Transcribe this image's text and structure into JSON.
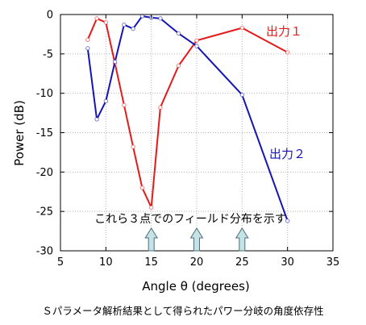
{
  "chart_data": {
    "type": "line",
    "xlabel": "Angle θ (degrees)",
    "ylabel": "Power (dB)",
    "xlim": [
      5,
      35
    ],
    "ylim": [
      -30,
      0
    ],
    "xticks": [
      5,
      10,
      15,
      20,
      25,
      30,
      35
    ],
    "yticks": [
      0,
      -5,
      -10,
      -15,
      -20,
      -25,
      -30
    ],
    "grid": true,
    "series": [
      {
        "name": "出力１",
        "color": "#e41a1a",
        "x": [
          8,
          9,
          10,
          11,
          12,
          13,
          14,
          15,
          16,
          18,
          20,
          25,
          30
        ],
        "y": [
          -3.2,
          -0.5,
          -1.0,
          -6.2,
          -11.5,
          -16.8,
          -22.0,
          -24.5,
          -11.8,
          -6.5,
          -3.3,
          -1.7,
          -4.8
        ]
      },
      {
        "name": "出力２",
        "color": "#1515b5",
        "x": [
          8,
          9,
          10,
          11,
          12,
          13,
          14,
          15,
          16,
          18,
          20,
          25,
          30
        ],
        "y": [
          -4.3,
          -13.3,
          -11.0,
          -6.0,
          -1.3,
          -1.8,
          -0.2,
          -0.4,
          -0.5,
          -2.4,
          -4.0,
          -10.2,
          -26.2
        ]
      }
    ],
    "annotation": {
      "text": "これら３点でのフィールド分布を示す",
      "arrow_x": [
        15,
        20,
        25
      ],
      "arrow_color": "#c5e3e6"
    }
  },
  "caption": "Ｓパラメータ解析結果として得られたパワー分岐の角度依存性"
}
